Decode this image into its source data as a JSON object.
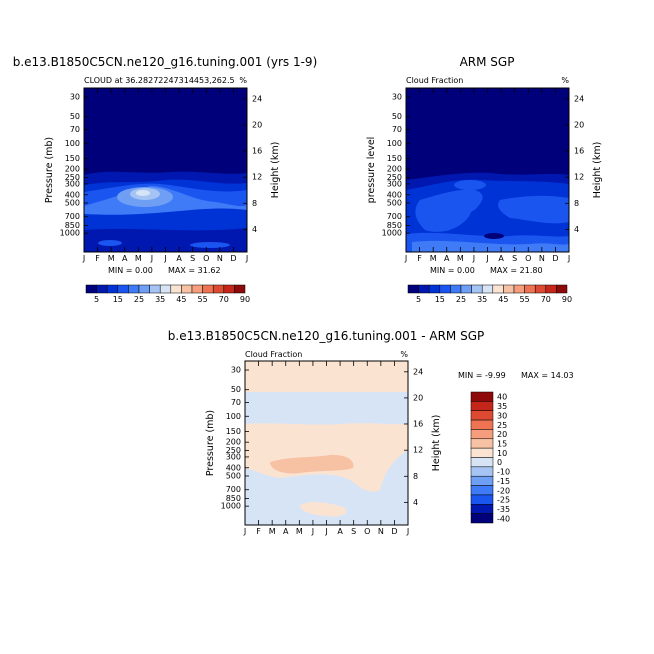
{
  "chart_data": [
    {
      "type": "heatmap",
      "title": "b.e13.B1850C5CN.ne120_g16.tuning.001 (yrs 1-9)",
      "subtitle_left": "CLOUD at 36.28272247314453,262.5",
      "subtitle_right": "%",
      "ylabel": "Pressure (mb)",
      "ylabel_right": "Height (km)",
      "y_ticks": [
        "30",
        "50",
        "70",
        "100",
        "150",
        "200",
        "250",
        "300",
        "400",
        "500",
        "700",
        "850",
        "1000"
      ],
      "y_ticks_right": [
        "24",
        "20",
        "16",
        "12",
        "8",
        "4"
      ],
      "x_ticks": [
        "J",
        "F",
        "M",
        "A",
        "M",
        "J",
        "J",
        "A",
        "S",
        "O",
        "N",
        "D",
        "J"
      ],
      "min_label": "MIN =   0.00",
      "max_label": "MAX =  31.62",
      "min": 0.0,
      "max": 31.62
    },
    {
      "type": "heatmap",
      "title": "ARM SGP",
      "subtitle_left": "Cloud Fraction",
      "subtitle_right": "%",
      "ylabel": "pressure  level",
      "ylabel_right": "Height (km)",
      "y_ticks": [
        "30",
        "50",
        "70",
        "100",
        "150",
        "200",
        "250",
        "300",
        "400",
        "500",
        "700",
        "850",
        "1000"
      ],
      "y_ticks_right": [
        "24",
        "20",
        "16",
        "12",
        "8",
        "4"
      ],
      "x_ticks": [
        "J",
        "F",
        "M",
        "A",
        "M",
        "J",
        "J",
        "A",
        "S",
        "O",
        "N",
        "D",
        "J"
      ],
      "min_label": "MIN =   0.00",
      "max_label": "MAX =  21.80",
      "min": 0.0,
      "max": 21.8
    },
    {
      "type": "heatmap",
      "title": "b.e13.B1850C5CN.ne120_g16.tuning.001 - ARM SGP",
      "subtitle_left": "Cloud Fraction",
      "subtitle_right": "%",
      "ylabel": "Pressure (mb)",
      "ylabel_right": "Height (km)",
      "y_ticks": [
        "30",
        "50",
        "70",
        "100",
        "150",
        "200",
        "250",
        "300",
        "400",
        "500",
        "700",
        "850",
        "1000"
      ],
      "y_ticks_right": [
        "24",
        "20",
        "16",
        "12",
        "8",
        "4"
      ],
      "x_ticks": [
        "J",
        "F",
        "M",
        "A",
        "M",
        "J",
        "J",
        "A",
        "S",
        "O",
        "N",
        "D",
        "J"
      ],
      "min_label": "MIN = -9.99",
      "max_label": "MAX =  14.03",
      "min": -9.99,
      "max": 14.03
    }
  ],
  "colorbar_top": {
    "labels": [
      "5",
      "15",
      "25",
      "35",
      "45",
      "55",
      "70",
      "90"
    ],
    "colors": [
      "#00007a",
      "#0018b0",
      "#0033d6",
      "#1a55f0",
      "#3f7af7",
      "#6f9ef5",
      "#a6c4f3",
      "#d6e4f6",
      "#fbe3d2",
      "#f7c2a4",
      "#f59d7c",
      "#ee7352",
      "#de4a31",
      "#c4261a",
      "#8e0a0a"
    ]
  },
  "colorbar_diff": {
    "labels": [
      "40",
      "35",
      "30",
      "25",
      "20",
      "15",
      "10",
      "0",
      "-10",
      "-15",
      "-20",
      "-25",
      "-35",
      "-40"
    ],
    "colors": [
      "#8e0a0a",
      "#c4261a",
      "#de4a31",
      "#ee7352",
      "#f59d7c",
      "#f7c2a4",
      "#fbe3d2",
      "#d6e4f6",
      "#a6c4f3",
      "#6f9ef5",
      "#3f7af7",
      "#1a55f0",
      "#0018b0",
      "#00007a"
    ]
  }
}
